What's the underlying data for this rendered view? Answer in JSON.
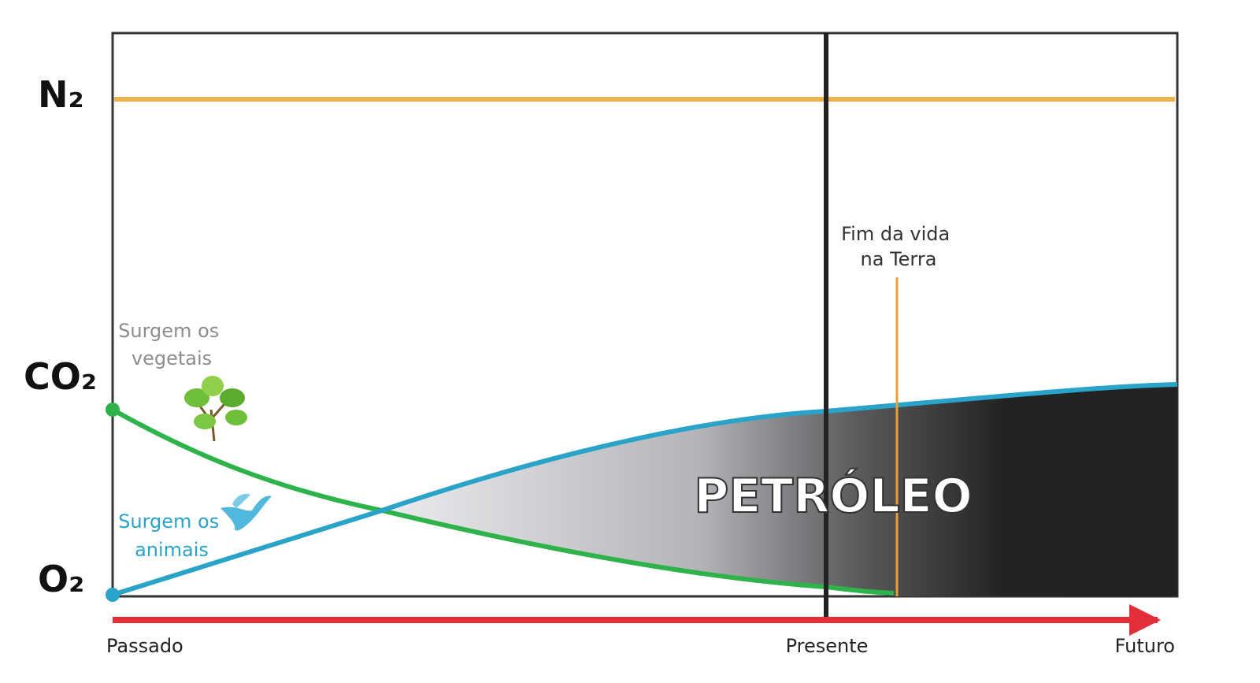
{
  "gases": {
    "n2": "N₂",
    "co2": "CO₂",
    "o2": "O₂"
  },
  "annotations": {
    "vegetais": [
      "Surgem os",
      "vegetais"
    ],
    "animais": [
      "Surgem os",
      "animais"
    ],
    "fim_da_vida": [
      "Fim da vida",
      "na Terra"
    ],
    "petroleo": "PETRÓLEO"
  },
  "time_axis": {
    "passado": "Passado",
    "presente": "Presente",
    "futuro": "Futuro"
  }
}
